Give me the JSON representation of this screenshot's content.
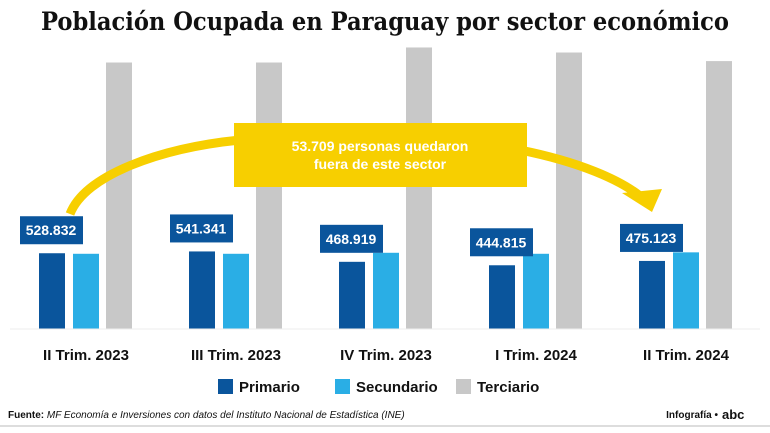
{
  "chart_data": {
    "type": "bar",
    "title": "Población Ocupada en Paraguay por sector económico",
    "categories": [
      "II Trim. 2023",
      "III Trim. 2023",
      "IV Trim. 2023",
      "I Trim. 2024",
      "II Trim. 2024"
    ],
    "series": [
      {
        "name": "Primario",
        "color": "#0a559c",
        "values": [
          528832,
          541341,
          468919,
          444815,
          475123
        ],
        "labels": [
          "528.832",
          "541.341",
          "468.919",
          "444.815",
          "475.123"
        ]
      },
      {
        "name": "Secundario",
        "color": "#2aaee5",
        "values": [
          525000,
          525000,
          532000,
          525000,
          535000
        ]
      },
      {
        "name": "Terciario",
        "color": "#c8c8c8",
        "values": [
          1860000,
          1860000,
          1965000,
          1930000,
          1870000
        ]
      }
    ],
    "ylim": [
      0,
      2000000
    ],
    "annotation": {
      "line1": "53.709 personas quedaron",
      "line2": "fuera de este sector",
      "color": "#f7cf00"
    },
    "legend_position": "bottom",
    "source_label": "Fuente:",
    "source_text": "MF Economía e Inversiones con datos del Instituto Nacional de Estadística (INE)",
    "credit": "Infografía •",
    "brand": "abc"
  }
}
